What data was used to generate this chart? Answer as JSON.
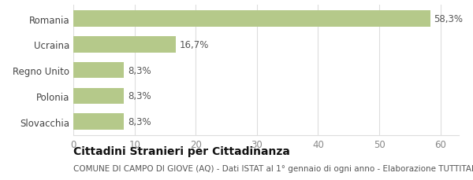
{
  "categories": [
    "Slovacchia",
    "Polonia",
    "Regno Unito",
    "Ucraina",
    "Romania"
  ],
  "values": [
    8.3,
    8.3,
    8.3,
    16.7,
    58.3
  ],
  "labels": [
    "8,3%",
    "8,3%",
    "8,3%",
    "16,7%",
    "58,3%"
  ],
  "bar_color": "#b5c98a",
  "background_color": "#ffffff",
  "xlim": [
    0,
    63
  ],
  "xticks": [
    0,
    10,
    20,
    30,
    40,
    50,
    60
  ],
  "title_bold": "Cittadini Stranieri per Cittadinanza",
  "subtitle": "COMUNE DI CAMPO DI GIOVE (AQ) - Dati ISTAT al 1° gennaio di ogni anno - Elaborazione TUTTITALIA.IT",
  "title_fontsize": 10,
  "subtitle_fontsize": 7.5,
  "tick_fontsize": 8.5,
  "label_fontsize": 8.5,
  "grid_color": "#dddddd",
  "bar_height": 0.62
}
